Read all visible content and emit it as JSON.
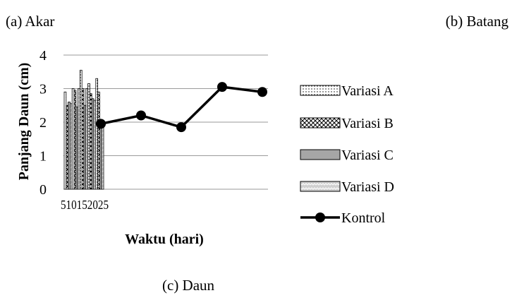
{
  "captions": {
    "a": "(a)  Akar",
    "b": "(b) Batang",
    "c": "(c) Daun"
  },
  "chart_data": {
    "type": "bar",
    "categories": [
      "5",
      "10",
      "15",
      "20",
      "25"
    ],
    "series": [
      {
        "name": "Variasi A",
        "kind": "bar",
        "pattern": "dots",
        "values": [
          2.9,
          3.0,
          3.55,
          3.15,
          3.3
        ]
      },
      {
        "name": "Variasi B",
        "kind": "bar",
        "pattern": "checker",
        "values": [
          2.5,
          2.95,
          3.0,
          2.85,
          2.9
        ]
      },
      {
        "name": "Variasi C",
        "kind": "bar",
        "pattern": "gray",
        "values": [
          2.6,
          2.45,
          2.5,
          2.7,
          2.0
        ]
      },
      {
        "name": "Variasi D",
        "kind": "bar",
        "pattern": "zigzag",
        "values": [
          2.55,
          3.0,
          3.0,
          2.65,
          2.0
        ]
      },
      {
        "name": "Kontrol",
        "kind": "line",
        "x": [
          1,
          2,
          3,
          4,
          5
        ],
        "values": [
          1.95,
          2.2,
          1.85,
          3.05,
          2.9
        ]
      }
    ],
    "xlabel": "Waktu (hari)",
    "ylabel": "Panjang Daun (cm)",
    "ylim": [
      0,
      4
    ],
    "yticks": [
      "0",
      "1",
      "2",
      "3",
      "4"
    ],
    "xtick_labels_text": "510152025",
    "grid": true,
    "legend_position": "right",
    "colors": {
      "line": "#000000",
      "grid": "#9a9a9a",
      "bar_stroke": "#000000",
      "gray_fill": "#a6a6a6"
    }
  }
}
